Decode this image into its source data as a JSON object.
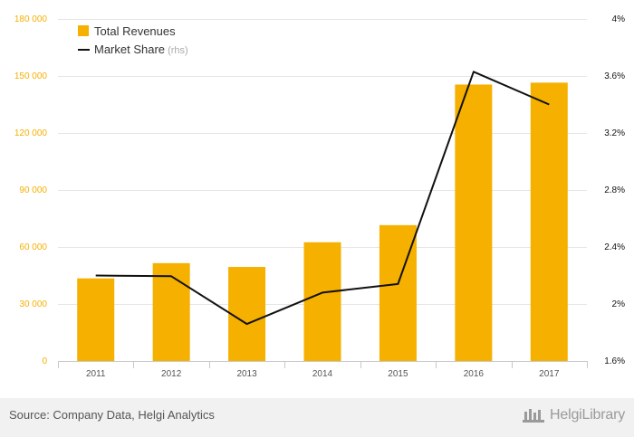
{
  "chart_data": {
    "type": "bar+line",
    "categories": [
      "2011",
      "2012",
      "2013",
      "2014",
      "2015",
      "2016",
      "2017"
    ],
    "series": [
      {
        "name": "Total Revenues",
        "type": "bar",
        "axis": "left",
        "color": "#f5b000",
        "values": [
          43500,
          51500,
          49500,
          62500,
          71500,
          145500,
          146500
        ]
      },
      {
        "name": "Market Share",
        "name_suffix": " (rhs)",
        "type": "line",
        "axis": "right",
        "color": "#111111",
        "values": [
          2.2,
          2.195,
          1.86,
          2.08,
          2.14,
          3.63,
          3.4
        ]
      }
    ],
    "y_left": {
      "min": 0,
      "max": 180000,
      "ticks": [
        "0",
        "30 000",
        "60 000",
        "90 000",
        "120 000",
        "150 000",
        "180 000"
      ],
      "tick_values": [
        0,
        30000,
        60000,
        90000,
        120000,
        150000,
        180000
      ],
      "color": "#f5b000"
    },
    "y_right": {
      "min": 1.6,
      "max": 4.0,
      "ticks": [
        "1.6%",
        "2%",
        "2.4%",
        "2.8%",
        "3.2%",
        "3.6%",
        "4%"
      ],
      "tick_values": [
        1.6,
        2.0,
        2.4,
        2.8,
        3.2,
        3.6,
        4.0
      ],
      "color": "#111111"
    },
    "grid": true,
    "legend": "top-left"
  },
  "footer": {
    "source": "Source: Company Data, Helgi Analytics",
    "brand": "HelgiLibrary"
  }
}
